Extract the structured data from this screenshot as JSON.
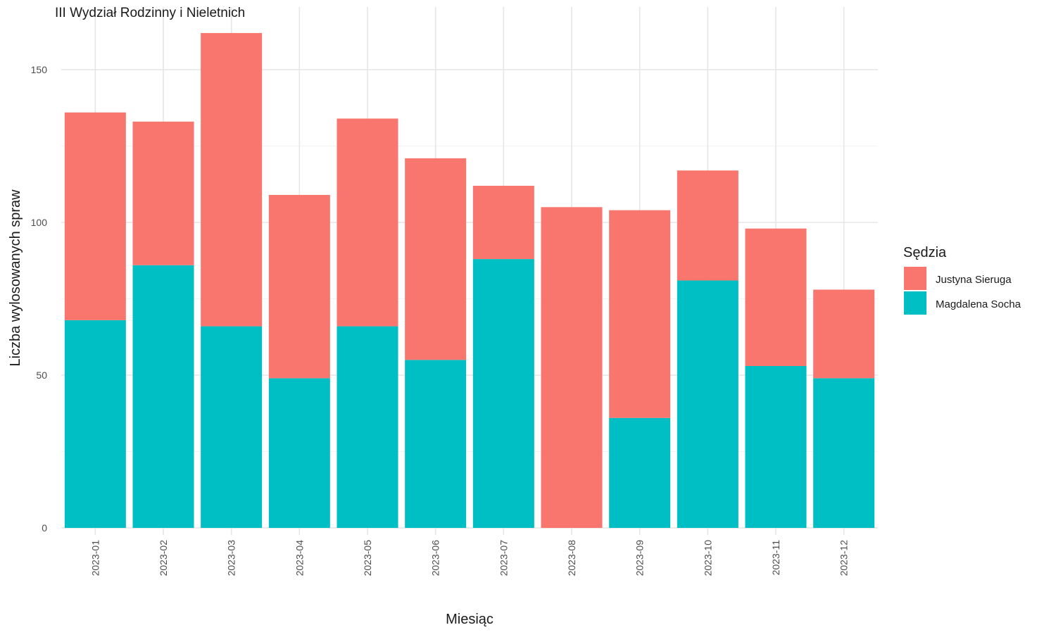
{
  "chart_data": {
    "type": "bar",
    "stacked": true,
    "title": "III Wydział Rodzinny i Nieletnich",
    "xlabel": "Miesiąc",
    "ylabel": "Liczba wylosowanych spraw",
    "ylim": [
      0,
      166
    ],
    "yticks": [
      0,
      50,
      100,
      150
    ],
    "grid": true,
    "legend_position": "right",
    "legend_title": "Sędzia",
    "categories": [
      "2023-01",
      "2023-02",
      "2023-03",
      "2023-04",
      "2023-05",
      "2023-06",
      "2023-07",
      "2023-08",
      "2023-09",
      "2023-10",
      "2023-11",
      "2023-12"
    ],
    "series": [
      {
        "name": "Justyna Sieruga",
        "color": "#F8766D",
        "values": [
          68,
          47,
          96,
          60,
          68,
          66,
          24,
          105,
          68,
          36,
          45,
          29
        ]
      },
      {
        "name": "Magdalena Socha",
        "color": "#00BFC4",
        "values": [
          68,
          86,
          66,
          49,
          66,
          55,
          88,
          0,
          36,
          81,
          53,
          49
        ]
      }
    ]
  }
}
